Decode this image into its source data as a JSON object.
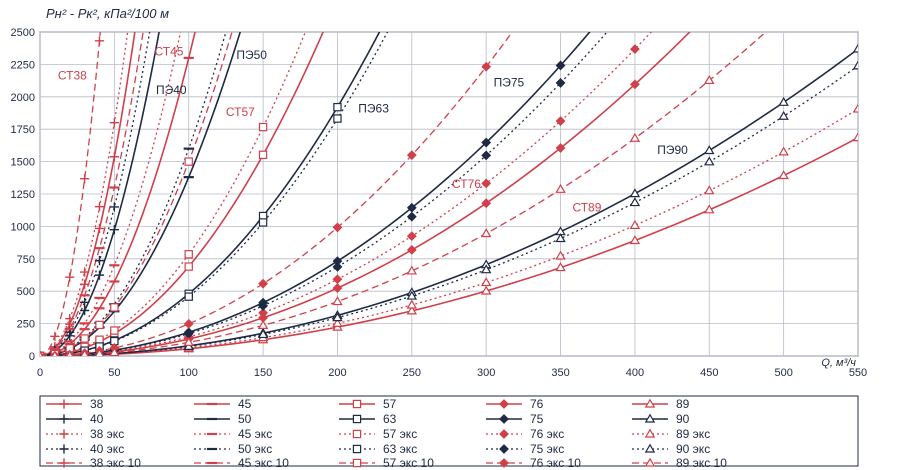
{
  "chart_data": {
    "type": "line",
    "ytitle": "Pн² - Pк², кПа²/100 м",
    "xtitle": "Q, м³/ч",
    "xlim": [
      0,
      550
    ],
    "ylim": [
      0,
      2500
    ],
    "xticks": [
      0,
      50,
      100,
      150,
      200,
      250,
      300,
      350,
      400,
      450,
      500,
      550
    ],
    "yticks": [
      0,
      250,
      500,
      750,
      1000,
      1250,
      1500,
      1750,
      2000,
      2250,
      2500
    ],
    "grid": true,
    "colors": {
      "red": "#d0404a",
      "navy": "#1f2a44"
    },
    "annotations": [
      {
        "text": "СТ38",
        "x": 12,
        "y": 2135,
        "color": "red"
      },
      {
        "text": "СТ45",
        "x": 77,
        "y": 2320,
        "color": "red"
      },
      {
        "text": "ПЭ40",
        "x": 78,
        "y": 2020,
        "color": "navy"
      },
      {
        "text": "ПЭ50",
        "x": 132,
        "y": 2290,
        "color": "navy"
      },
      {
        "text": "СТ57",
        "x": 125,
        "y": 1850,
        "color": "red"
      },
      {
        "text": "ПЭ63",
        "x": 214,
        "y": 1880,
        "color": "navy"
      },
      {
        "text": "ПЭ75",
        "x": 305,
        "y": 2080,
        "color": "navy"
      },
      {
        "text": "СТ76",
        "x": 277,
        "y": 1295,
        "color": "red"
      },
      {
        "text": "ПЭ90",
        "x": 415,
        "y": 1560,
        "color": "navy"
      },
      {
        "text": "СТ89",
        "x": 358,
        "y": 1115,
        "color": "red"
      }
    ],
    "legend_position": "bottom",
    "series": [
      {
        "name": "38",
        "k": 0.615,
        "color": "red",
        "dash": "solid",
        "marker": "plus"
      },
      {
        "name": "45",
        "k": 0.23,
        "color": "red",
        "dash": "solid",
        "marker": "dash"
      },
      {
        "name": "57",
        "k": 0.069,
        "color": "red",
        "dash": "solid",
        "marker": "square"
      },
      {
        "name": "76",
        "k": 0.0131,
        "color": "red",
        "dash": "solid",
        "marker": "diamond"
      },
      {
        "name": "89",
        "k": 0.00557,
        "color": "red",
        "dash": "solid",
        "marker": "triangle"
      },
      {
        "name": "40",
        "k": 0.39,
        "color": "navy",
        "dash": "solid",
        "marker": "plus"
      },
      {
        "name": "50",
        "k": 0.138,
        "color": "navy",
        "dash": "solid",
        "marker": "dash"
      },
      {
        "name": "63",
        "k": 0.048,
        "color": "navy",
        "dash": "solid",
        "marker": "square"
      },
      {
        "name": "75",
        "k": 0.0183,
        "color": "navy",
        "dash": "solid",
        "marker": "diamond"
      },
      {
        "name": "90",
        "k": 0.00783,
        "color": "navy",
        "dash": "solid",
        "marker": "triangle"
      },
      {
        "name": "38 экс",
        "k": 0.72,
        "color": "red",
        "dash": "dot",
        "marker": "plus"
      },
      {
        "name": "45 экс",
        "k": 0.28,
        "color": "red",
        "dash": "dot",
        "marker": "dash"
      },
      {
        "name": "57 экс",
        "k": 0.0785,
        "color": "red",
        "dash": "dot",
        "marker": "square"
      },
      {
        "name": "76 экс",
        "k": 0.0148,
        "color": "red",
        "dash": "dot",
        "marker": "diamond"
      },
      {
        "name": "89 экс",
        "k": 0.0063,
        "color": "red",
        "dash": "dot",
        "marker": "triangle"
      },
      {
        "name": "40 экс",
        "k": 0.46,
        "color": "navy",
        "dash": "dot",
        "marker": "plus"
      },
      {
        "name": "50 экс",
        "k": 0.16,
        "color": "navy",
        "dash": "dot",
        "marker": "dash"
      },
      {
        "name": "63 экс",
        "k": 0.0458,
        "color": "navy",
        "dash": "dot",
        "marker": "square"
      },
      {
        "name": "75 экс",
        "k": 0.0172,
        "color": "navy",
        "dash": "dot",
        "marker": "diamond"
      },
      {
        "name": "90 экс",
        "k": 0.0074,
        "color": "navy",
        "dash": "dot",
        "marker": "triangle"
      },
      {
        "name": "38 экс 10",
        "k": 1.52,
        "color": "red",
        "dash": "dash",
        "marker": "plus"
      },
      {
        "name": "45 экс 10",
        "k": 0.52,
        "color": "red",
        "dash": "dash",
        "marker": "dash"
      },
      {
        "name": "57 экс 10",
        "k": 0.15,
        "color": "red",
        "dash": "dash",
        "marker": "square"
      },
      {
        "name": "76 экс 10",
        "k": 0.0248,
        "color": "red",
        "dash": "dash",
        "marker": "diamond"
      },
      {
        "name": "89 экс 10",
        "k": 0.0105,
        "color": "red",
        "dash": "dash",
        "marker": "triangle"
      }
    ],
    "x_points": [
      0,
      10,
      20,
      30,
      40,
      50,
      100,
      150,
      200,
      250,
      300,
      350,
      400,
      450,
      500,
      550
    ]
  }
}
